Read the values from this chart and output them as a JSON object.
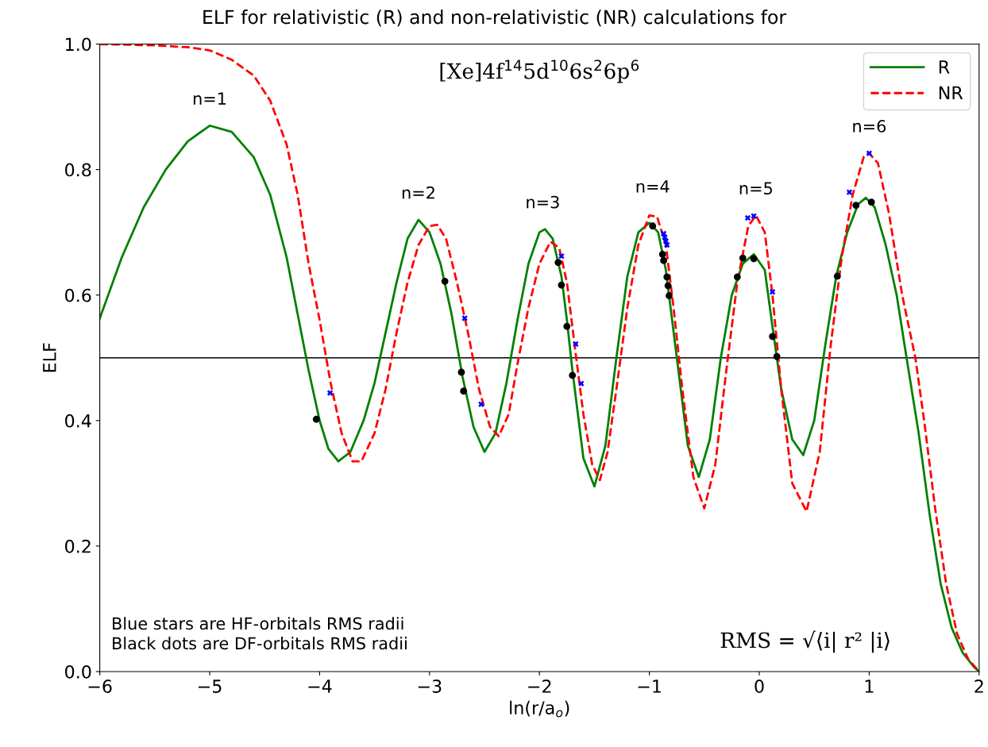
{
  "chart_data": {
    "type": "line",
    "title": "ELF for relativistic (R) and non-relativistic (NR) calculations for",
    "subtitle": "[Xe]4f$^{14}$5d$^{10}$6s$^{2}$6p$^{6}$",
    "xlabel": "ln(r/a$_{o}$)",
    "ylabel": "ELF",
    "xlim": [
      -6,
      2
    ],
    "xticks": [
      {
        "value": -6,
        "label": "−6"
      },
      {
        "value": -5,
        "label": "−5"
      },
      {
        "value": -4,
        "label": "−4"
      },
      {
        "value": -3,
        "label": "−3"
      },
      {
        "value": -2,
        "label": "−2"
      },
      {
        "value": -1,
        "label": "−1"
      },
      0,
      1,
      2
    ],
    "ylim": [
      0,
      1
    ],
    "yticks": [
      {
        "value": 0,
        "label": "0.0"
      },
      0.2,
      0.4,
      0.6,
      0.8,
      {
        "value": 1,
        "label": "1.0"
      }
    ],
    "grid": false,
    "legend": "top right",
    "series": [
      {
        "name": "R",
        "color": "#008000",
        "line_style": "solid",
        "marker": "none",
        "x": [
          -6,
          -5.8,
          -5.6,
          -5.4,
          -5.2,
          -5.0,
          -4.8,
          -4.6,
          -4.45,
          -4.3,
          -4.2,
          -4.1,
          -4.0,
          -3.92,
          -3.83,
          -3.72,
          -3.6,
          -3.5,
          -3.4,
          -3.3,
          -3.2,
          -3.1,
          -3.0,
          -2.9,
          -2.8,
          -2.7,
          -2.6,
          -2.5,
          -2.4,
          -2.3,
          -2.2,
          -2.1,
          -2.0,
          -1.95,
          -1.88,
          -1.8,
          -1.75,
          -1.7,
          -1.6,
          -1.5,
          -1.4,
          -1.3,
          -1.2,
          -1.1,
          -1.0,
          -0.92,
          -0.85,
          -0.75,
          -0.65,
          -0.55,
          -0.45,
          -0.35,
          -0.25,
          -0.15,
          -0.05,
          0.05,
          0.12,
          0.2,
          0.3,
          0.4,
          0.5,
          0.6,
          0.7,
          0.8,
          0.9,
          0.97,
          1.05,
          1.15,
          1.25,
          1.34,
          1.45,
          1.55,
          1.65,
          1.75,
          1.85,
          1.95,
          2.0
        ],
        "values": [
          0.563,
          0.66,
          0.74,
          0.8,
          0.845,
          0.87,
          0.86,
          0.82,
          0.76,
          0.66,
          0.57,
          0.48,
          0.4,
          0.355,
          0.335,
          0.35,
          0.4,
          0.46,
          0.54,
          0.62,
          0.69,
          0.72,
          0.7,
          0.65,
          0.57,
          0.47,
          0.39,
          0.35,
          0.38,
          0.46,
          0.56,
          0.65,
          0.7,
          0.705,
          0.69,
          0.63,
          0.56,
          0.48,
          0.34,
          0.295,
          0.36,
          0.5,
          0.63,
          0.7,
          0.715,
          0.7,
          0.64,
          0.5,
          0.36,
          0.31,
          0.37,
          0.5,
          0.6,
          0.65,
          0.665,
          0.64,
          0.55,
          0.45,
          0.37,
          0.345,
          0.4,
          0.52,
          0.63,
          0.7,
          0.745,
          0.755,
          0.74,
          0.68,
          0.6,
          0.5,
          0.38,
          0.25,
          0.14,
          0.07,
          0.03,
          0.008,
          0.0
        ]
      },
      {
        "name": "NR",
        "color": "#ff0000",
        "line_style": "dashed",
        "marker": "none",
        "x": [
          -6,
          -5.5,
          -5.2,
          -5.0,
          -4.8,
          -4.6,
          -4.45,
          -4.3,
          -4.2,
          -4.1,
          -4.0,
          -3.9,
          -3.8,
          -3.7,
          -3.62,
          -3.5,
          -3.4,
          -3.3,
          -3.2,
          -3.1,
          -3.0,
          -2.93,
          -2.85,
          -2.75,
          -2.65,
          -2.55,
          -2.45,
          -2.37,
          -2.28,
          -2.2,
          -2.1,
          -2.0,
          -1.9,
          -1.82,
          -1.75,
          -1.68,
          -1.6,
          -1.52,
          -1.45,
          -1.38,
          -1.3,
          -1.2,
          -1.1,
          -1.0,
          -0.93,
          -0.85,
          -0.78,
          -0.7,
          -0.6,
          -0.5,
          -0.4,
          -0.3,
          -0.2,
          -0.1,
          -0.03,
          0.05,
          0.12,
          0.2,
          0.3,
          0.43,
          0.55,
          0.65,
          0.75,
          0.85,
          0.95,
          1.0,
          1.08,
          1.18,
          1.3,
          1.42,
          1.5,
          1.6,
          1.7,
          1.8,
          1.9,
          2.0
        ],
        "values": [
          1.0,
          0.998,
          0.995,
          0.99,
          0.975,
          0.95,
          0.91,
          0.84,
          0.76,
          0.65,
          0.56,
          0.46,
          0.38,
          0.335,
          0.335,
          0.38,
          0.45,
          0.54,
          0.62,
          0.68,
          0.71,
          0.712,
          0.69,
          0.62,
          0.54,
          0.45,
          0.39,
          0.375,
          0.41,
          0.49,
          0.58,
          0.65,
          0.685,
          0.675,
          0.62,
          0.52,
          0.41,
          0.33,
          0.305,
          0.35,
          0.45,
          0.58,
          0.68,
          0.727,
          0.725,
          0.68,
          0.58,
          0.45,
          0.31,
          0.26,
          0.33,
          0.48,
          0.62,
          0.71,
          0.727,
          0.7,
          0.6,
          0.45,
          0.3,
          0.255,
          0.35,
          0.52,
          0.66,
          0.76,
          0.82,
          0.826,
          0.81,
          0.73,
          0.6,
          0.5,
          0.4,
          0.26,
          0.14,
          0.06,
          0.02,
          0.0
        ]
      },
      {
        "type": "scatter",
        "color": "#0000ff",
        "marker": "cross",
        "x": [
          -3.905,
          -2.68,
          -2.53,
          -1.8,
          -1.67,
          -1.62,
          -0.87,
          -0.86,
          -0.85,
          -0.84,
          -0.105,
          -0.05,
          0.12,
          0.82,
          1.0
        ],
        "values": [
          0.444,
          0.563,
          0.426,
          0.662,
          0.522,
          0.459,
          0.698,
          0.692,
          0.686,
          0.68,
          0.723,
          0.726,
          0.605,
          0.764,
          0.826
        ]
      },
      {
        "type": "scatter",
        "color": "#000000",
        "marker": "circle",
        "x": [
          -4.03,
          -2.86,
          -2.71,
          -2.69,
          -1.83,
          -1.8,
          -1.75,
          -1.7,
          -0.97,
          -0.88,
          -0.87,
          -0.84,
          -0.83,
          -0.82,
          -0.2,
          -0.15,
          -0.05,
          0.12,
          0.16,
          0.71,
          0.88,
          1.02
        ],
        "values": [
          0.402,
          0.622,
          0.477,
          0.447,
          0.652,
          0.616,
          0.55,
          0.472,
          0.71,
          0.665,
          0.655,
          0.629,
          0.615,
          0.599,
          0.629,
          0.659,
          0.658,
          0.534,
          0.502,
          0.63,
          0.743,
          0.748
        ]
      }
    ],
    "ref_lines": [
      {
        "axis": "y",
        "value": 0.5,
        "color": "#000000",
        "line_style": "solid"
      }
    ],
    "annotations": [
      {
        "text": "n=1",
        "x": -5.0,
        "y": 0.87
      },
      {
        "text": "n=2",
        "x": -3.1,
        "y": 0.72
      },
      {
        "text": "n=3",
        "x": -1.97,
        "y": 0.705
      },
      {
        "text": "n=4",
        "x": -0.97,
        "y": 0.73
      },
      {
        "text": "n=5",
        "x": -0.03,
        "y": 0.727
      },
      {
        "text": "n=6",
        "x": 1.0,
        "y": 0.826
      },
      "Blue stars are HF-orbitals RMS radii\nBlack dots are DF-orbitals RMS radii",
      "RMS = √⟨i| r² |i⟩"
    ]
  }
}
